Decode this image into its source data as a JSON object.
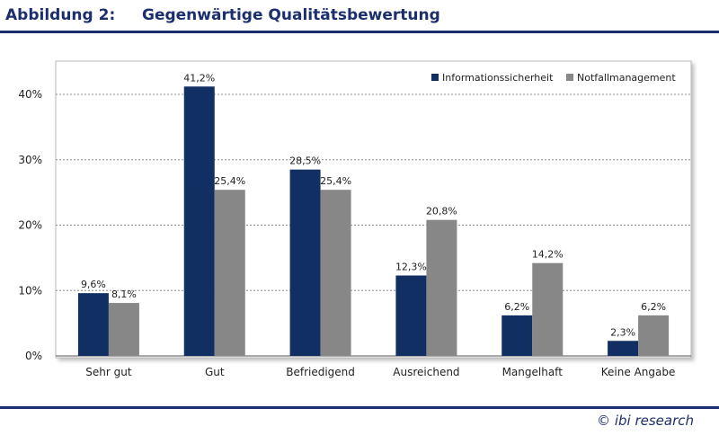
{
  "figure": {
    "label": "Abbildung 2:",
    "title": "Gegenwärtige Qualitätsbewertung",
    "copyright": "© ibi research"
  },
  "colors": {
    "brand": "#1b2f6e",
    "series_1": "#112f63",
    "series_2": "#878787"
  },
  "chart_data": {
    "type": "bar",
    "categories": [
      "Sehr gut",
      "Gut",
      "Befriedigend",
      "Ausreichend",
      "Mangelhaft",
      "Keine Angabe"
    ],
    "series": [
      {
        "name": "Informationssicherheit",
        "values": [
          9.6,
          41.2,
          28.5,
          12.3,
          6.2,
          2.3
        ],
        "labels": [
          "9,6%",
          "41,2%",
          "28,5%",
          "12,3%",
          "6,2%",
          "2,3%"
        ]
      },
      {
        "name": "Notfallmanagement",
        "values": [
          8.1,
          25.4,
          25.4,
          20.8,
          14.2,
          6.2
        ],
        "labels": [
          "8,1%",
          "25,4%",
          "25,4%",
          "20,8%",
          "14,2%",
          "6,2%"
        ]
      }
    ],
    "ylim": [
      0,
      40
    ],
    "yticks": [
      0,
      10,
      20,
      30,
      40
    ],
    "ytick_labels": [
      "0%",
      "10%",
      "20%",
      "30%",
      "40%"
    ],
    "grid": true,
    "legend_position": "top-right",
    "xlabel": "",
    "ylabel": ""
  }
}
